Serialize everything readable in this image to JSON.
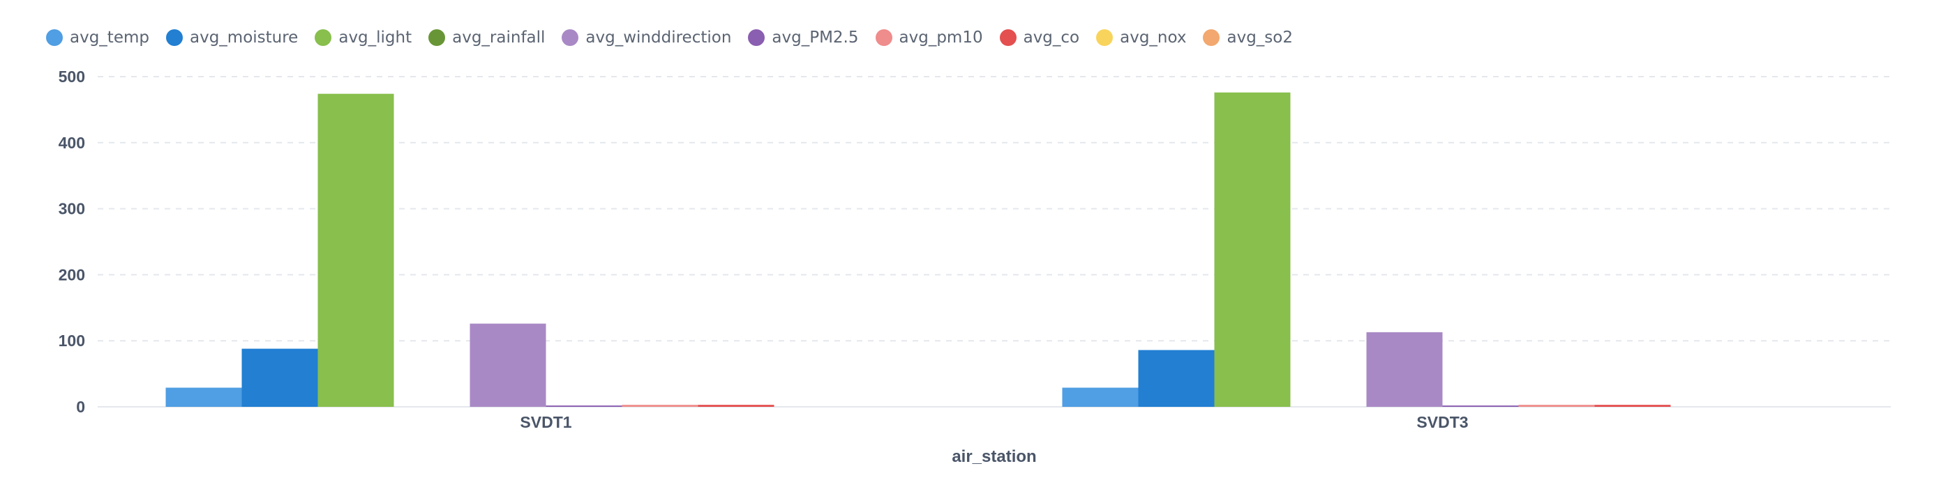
{
  "chart_data": {
    "type": "bar",
    "xlabel": "air_station",
    "ylabel": "",
    "ylim": [
      0,
      500
    ],
    "yticks": [
      "0",
      "100",
      "200",
      "300",
      "400",
      "500"
    ],
    "grid": true,
    "legend_position": "top-left",
    "categories": [
      "SVDT1",
      "SVDT3"
    ],
    "series": [
      {
        "name": "avg_temp",
        "color": "#509EE3",
        "values": [
          29,
          29
        ]
      },
      {
        "name": "avg_moisture",
        "color": "#227FD2",
        "values": [
          88,
          86
        ]
      },
      {
        "name": "avg_light",
        "color": "#88BF4D",
        "values": [
          474,
          476
        ]
      },
      {
        "name": "avg_rainfall",
        "color": "#689636",
        "values": [
          0,
          0
        ]
      },
      {
        "name": "avg_winddirection",
        "color": "#A989C5",
        "values": [
          126,
          113
        ]
      },
      {
        "name": "avg_PM2.5",
        "color": "#8A5EB0",
        "values": [
          2,
          2
        ]
      },
      {
        "name": "avg_pm10",
        "color": "#EF8C8C",
        "values": [
          3,
          3
        ]
      },
      {
        "name": "avg_co",
        "color": "#E44F4F",
        "values": [
          3,
          3
        ]
      },
      {
        "name": "avg_nox",
        "color": "#F9D45C",
        "values": [
          0,
          0
        ]
      },
      {
        "name": "avg_so2",
        "color": "#F2A86F",
        "values": [
          0,
          0
        ]
      }
    ]
  }
}
